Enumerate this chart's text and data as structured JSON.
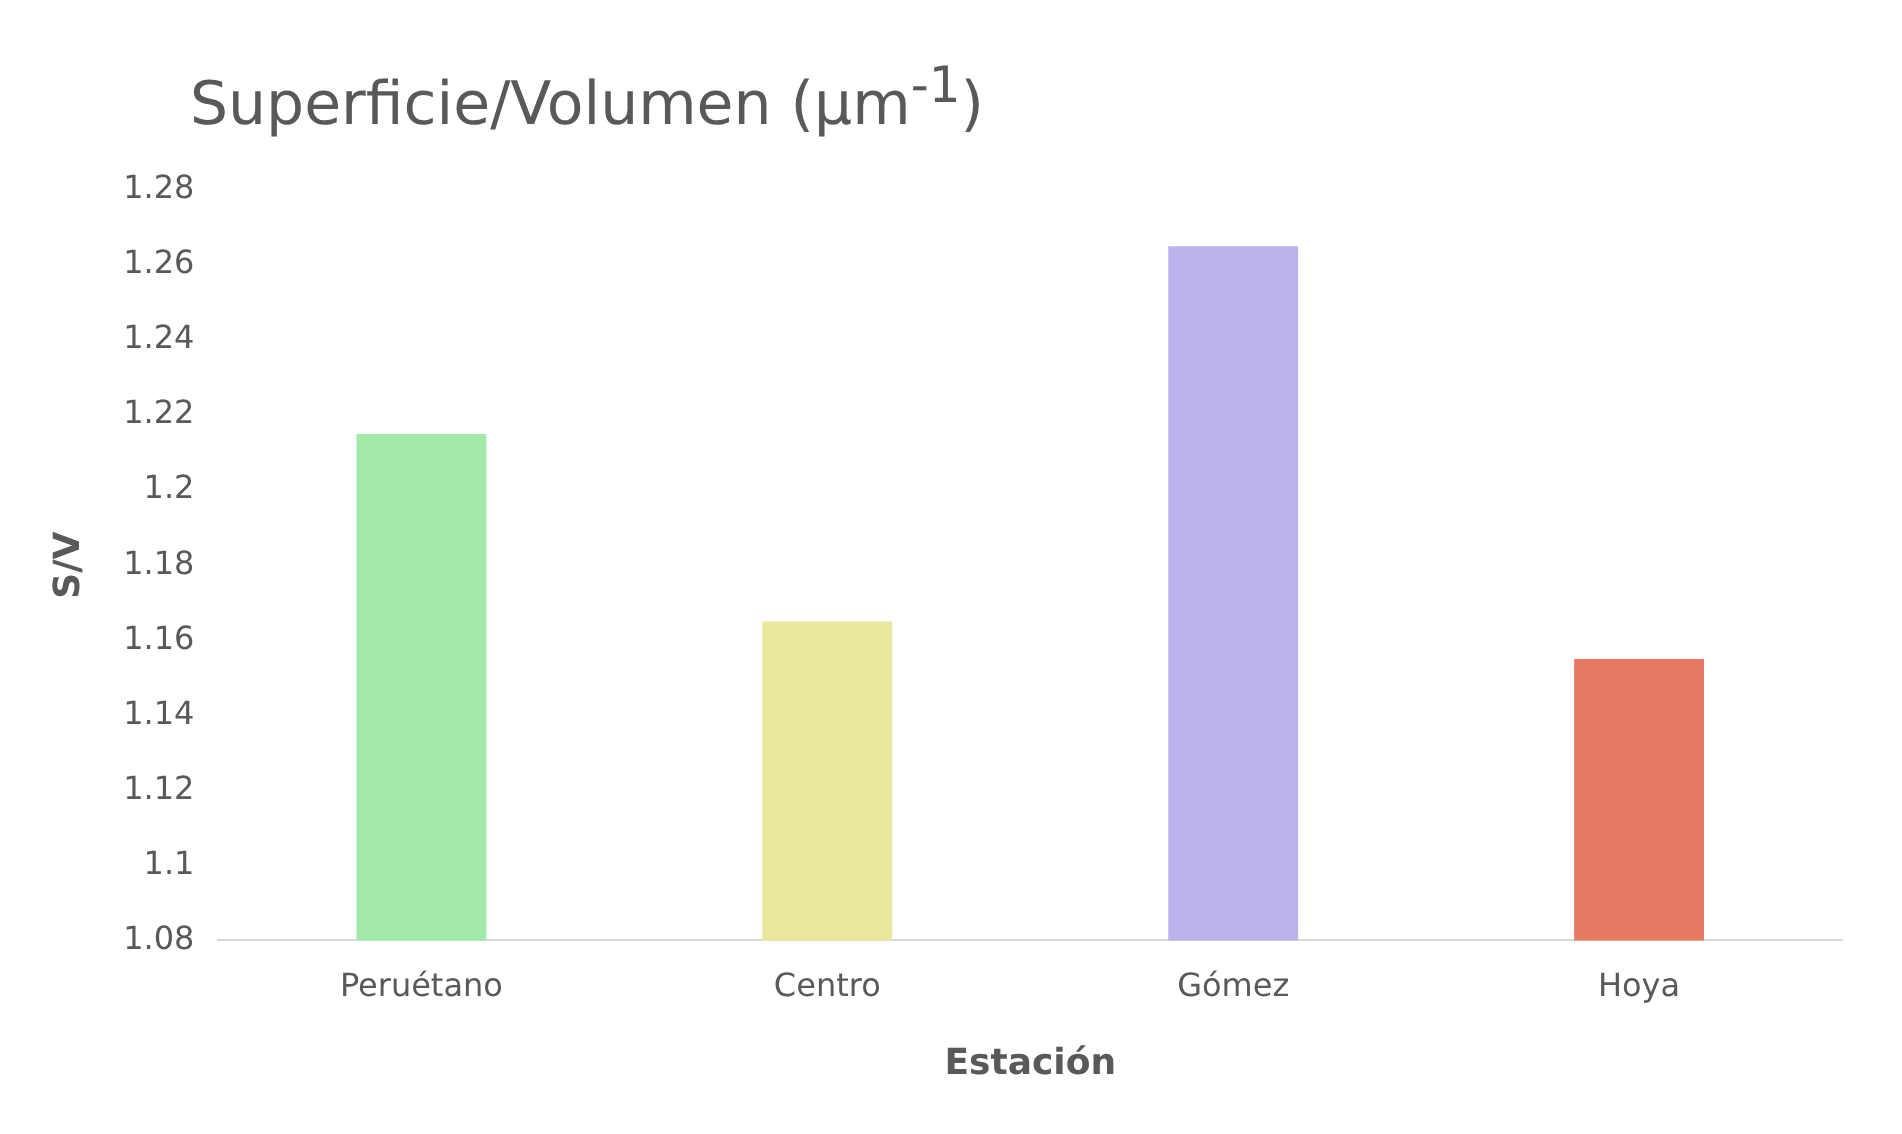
{
  "chart_data": {
    "type": "bar",
    "title": "Superficie/Volumen (µm$^{-1}$)",
    "xlabel": "Estación",
    "ylabel": "S/V",
    "categories": [
      "Peruétano",
      "Centro",
      "Gómez",
      "Hoya"
    ],
    "values": [
      1.215,
      1.165,
      1.265,
      1.155
    ],
    "colors": [
      "#a3eaa9",
      "#e8e99a",
      "#bdb2ed",
      "#e87a64"
    ],
    "ylim": [
      1.08,
      1.28
    ],
    "yticks": [
      1.08,
      1.1,
      1.12,
      1.14,
      1.16,
      1.18,
      1.2,
      1.22,
      1.24,
      1.26,
      1.28
    ],
    "grid": false,
    "legend": false
  }
}
